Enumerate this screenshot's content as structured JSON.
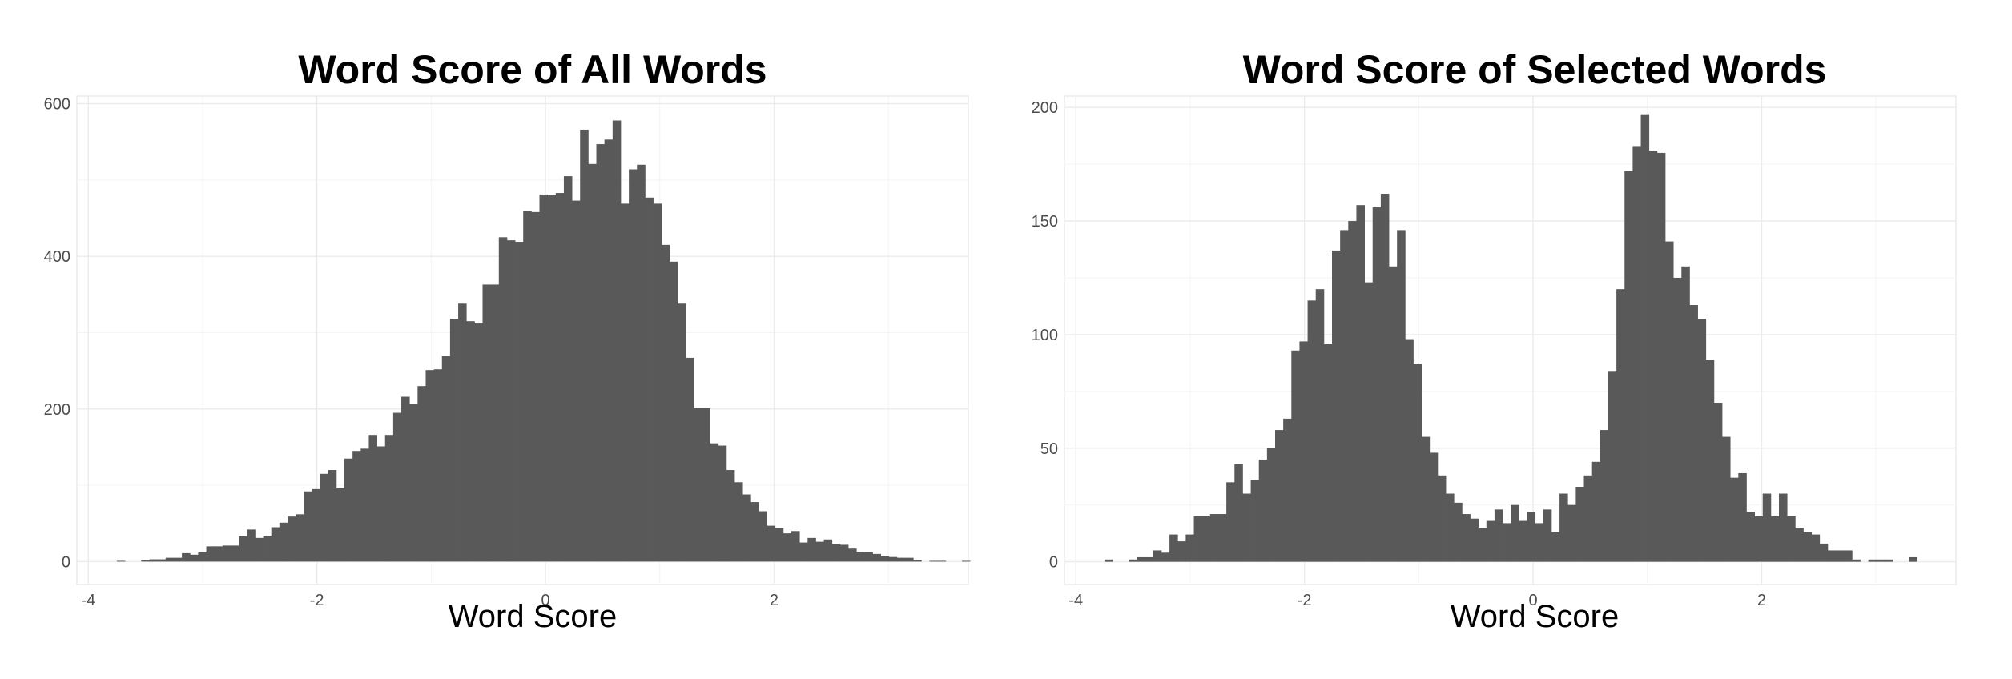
{
  "chart_data": [
    {
      "type": "bar",
      "title": "Word Score of All Words",
      "xlabel": "Word Score",
      "ylabel": "",
      "xlim": [
        -4.1,
        3.7
      ],
      "ylim": [
        -30,
        610
      ],
      "xticks": [
        -4,
        -2,
        0,
        2
      ],
      "yticks": [
        0,
        200,
        400,
        600
      ],
      "grid": true,
      "legend": "none",
      "bar_color": "#595959",
      "bins_start": -3.75,
      "bin_width": 0.0711,
      "values": [
        1,
        0,
        0,
        2,
        3,
        3,
        5,
        5,
        11,
        9,
        12,
        20,
        20,
        21,
        21,
        33,
        42,
        31,
        34,
        45,
        51,
        59,
        62,
        92,
        95,
        115,
        120,
        96,
        135,
        145,
        148,
        166,
        151,
        166,
        195,
        216,
        207,
        230,
        251,
        252,
        270,
        318,
        338,
        315,
        312,
        363,
        363,
        425,
        421,
        419,
        459,
        458,
        481,
        480,
        483,
        505,
        473,
        566,
        521,
        547,
        553,
        578,
        469,
        514,
        520,
        477,
        469,
        415,
        393,
        338,
        267,
        201,
        201,
        155,
        152,
        120,
        104,
        88,
        78,
        66,
        47,
        44,
        37,
        40,
        25,
        31,
        26,
        29,
        23,
        22,
        17,
        13,
        12,
        10,
        7,
        6,
        5,
        5,
        2,
        0,
        1,
        1,
        0,
        0,
        1
      ]
    },
    {
      "type": "bar",
      "title": "Word Score of Selected Words",
      "xlabel": "Word Score",
      "ylabel": "",
      "xlim": [
        -4.1,
        3.7
      ],
      "ylim": [
        -10,
        205
      ],
      "xticks": [
        -4,
        -2,
        0,
        2
      ],
      "yticks": [
        0,
        50,
        100,
        150,
        200
      ],
      "grid": true,
      "legend": "none",
      "bar_color": "#595959",
      "bins_start": -3.75,
      "bin_width": 0.0711,
      "values": [
        1,
        0,
        0,
        1,
        2,
        2,
        5,
        4,
        12,
        9,
        12,
        20,
        20,
        21,
        21,
        35,
        43,
        30,
        36,
        45,
        50,
        58,
        63,
        93,
        97,
        115,
        120,
        96,
        137,
        146,
        150,
        157,
        123,
        156,
        162,
        130,
        146,
        98,
        87,
        55,
        48,
        38,
        30,
        26,
        21,
        19,
        15,
        18,
        23,
        17,
        25,
        18,
        22,
        17,
        23,
        13,
        30,
        25,
        33,
        38,
        44,
        58,
        84,
        120,
        172,
        183,
        197,
        181,
        180,
        141,
        125,
        130,
        113,
        107,
        89,
        70,
        55,
        37,
        39,
        22,
        20,
        30,
        20,
        30,
        20,
        15,
        13,
        12,
        8,
        5,
        5,
        5,
        1,
        0,
        1,
        1,
        1,
        0,
        0,
        2
      ]
    }
  ]
}
